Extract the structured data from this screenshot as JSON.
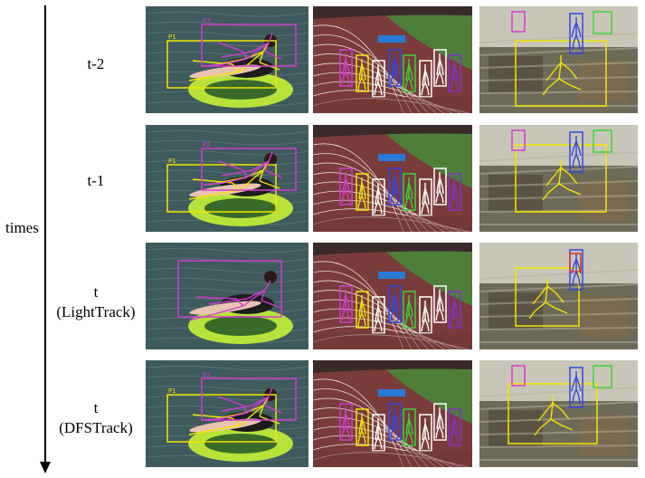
{
  "axis": {
    "label": "times"
  },
  "rows": [
    {
      "lines": [
        "t-2",
        ""
      ]
    },
    {
      "lines": [
        "t-1",
        ""
      ]
    },
    {
      "lines": [
        "t",
        "(LightTrack)"
      ]
    },
    {
      "lines": [
        "t",
        "(DFSTrack)"
      ]
    }
  ],
  "columns": [
    {
      "scene": "tube-on-water"
    },
    {
      "scene": "running-track"
    },
    {
      "scene": "crowded-street"
    }
  ],
  "colors": {
    "yellow": "#f2e600",
    "magenta": "#d23cd2",
    "white": "#ffffff",
    "green": "#3cd23c",
    "blue": "#3246e6",
    "purple": "#8232c8",
    "red": "#e03232"
  },
  "box_ids": {
    "yellow_person": "P1",
    "magenta_person": "P2"
  }
}
